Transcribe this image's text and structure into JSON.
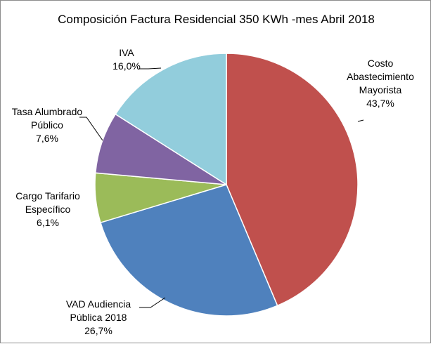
{
  "chart_data": {
    "type": "pie",
    "title": "Composición Factura Residencial 350 KWh -mes Abril 2018",
    "slices": [
      {
        "label": [
          "Costo",
          "Abastecimiento",
          "Mayorista"
        ],
        "pct_label": "43,7%",
        "value": 43.7,
        "color": "#c0504d"
      },
      {
        "label": [
          "VAD Audiencia",
          "Pública 2018"
        ],
        "pct_label": "26,7%",
        "value": 26.7,
        "color": "#4f81bd"
      },
      {
        "label": [
          "Cargo Tarifario",
          "Específico"
        ],
        "pct_label": "6,1%",
        "value": 6.1,
        "color": "#9bbb59"
      },
      {
        "label": [
          "Tasa Alumbrado",
          "Público"
        ],
        "pct_label": "7,6%",
        "value": 7.6,
        "color": "#8064a2"
      },
      {
        "label": [
          "IVA"
        ],
        "pct_label": "16,0%",
        "value": 16.0,
        "color": "#92cddc"
      }
    ]
  }
}
